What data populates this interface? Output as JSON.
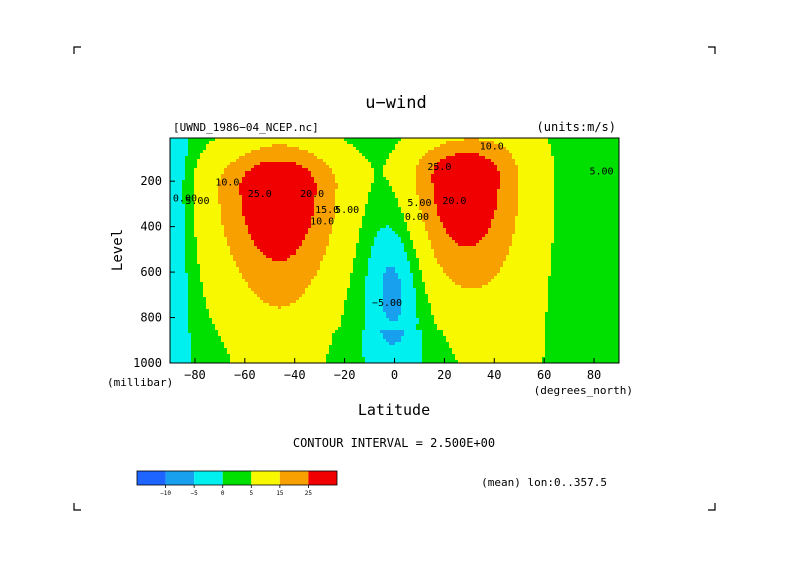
{
  "chart_data": {
    "type": "heatmap",
    "subtype": "filled-contour",
    "title": "u−wind",
    "file_label": "[UWND_1986−04_NCEP.nc]",
    "units_label": "(units:m/s)",
    "xlabel": "Latitude",
    "x_units": "(degrees_north)",
    "ylabel": "Level",
    "y_units": "(millibar)",
    "contour_interval_text": "CONTOUR INTERVAL = 2.500E+00",
    "mean_text": "(mean) lon:0..357.5",
    "xlim": [
      -90,
      90
    ],
    "ylim": [
      1000,
      10
    ],
    "y_inverted": true,
    "x_ticks": [
      -80,
      -60,
      -40,
      -20,
      0,
      20,
      40,
      60,
      80
    ],
    "x_tick_labels": [
      "−80",
      "−60",
      "−40",
      "−20",
      "0",
      "20",
      "40",
      "60",
      "80"
    ],
    "y_ticks": [
      200,
      400,
      600,
      800,
      1000
    ],
    "y_tick_labels": [
      "200",
      "400",
      "600",
      "800",
      "1000"
    ],
    "levels": [
      -10,
      -5,
      0,
      5,
      15,
      25
    ],
    "colorbar": {
      "colors": [
        "#1e64ff",
        "#18a0ee",
        "#00f0f0",
        "#00e000",
        "#f8f800",
        "#f8a000",
        "#f00000"
      ],
      "tick_labels": [
        "−10",
        "−5",
        "0",
        "5",
        "15",
        "25"
      ]
    },
    "jets": [
      {
        "lat": -47,
        "level": 220,
        "peak": 30
      },
      {
        "lat": 27,
        "level": 180,
        "peak": 32
      }
    ],
    "easterlies": [
      {
        "lat": 0,
        "level": 650,
        "min": -8
      }
    ],
    "contour_labels": [
      {
        "text": "0.00",
        "lat": -84,
        "level": 290
      },
      {
        "text": "5.00",
        "lat": -79,
        "level": 300
      },
      {
        "text": "10.0",
        "lat": -67,
        "level": 220
      },
      {
        "text": "25.0",
        "lat": -54,
        "level": 270
      },
      {
        "text": "20.0",
        "lat": -33,
        "level": 270
      },
      {
        "text": "15.0",
        "lat": -27,
        "level": 340
      },
      {
        "text": "10.0",
        "lat": -29,
        "level": 390
      },
      {
        "text": "5.00",
        "lat": -19,
        "level": 340
      },
      {
        "text": "−5.00",
        "lat": -3,
        "level": 750
      },
      {
        "text": "25.0",
        "lat": 18,
        "level": 150
      },
      {
        "text": "10.0",
        "lat": 39,
        "level": 60
      },
      {
        "text": "20.0",
        "lat": 24,
        "level": 300
      },
      {
        "text": "5.00",
        "lat": 10,
        "level": 310
      },
      {
        "text": "0.00",
        "lat": 9,
        "level": 370
      },
      {
        "text": "5.00",
        "lat": 83,
        "level": 170
      }
    ]
  }
}
